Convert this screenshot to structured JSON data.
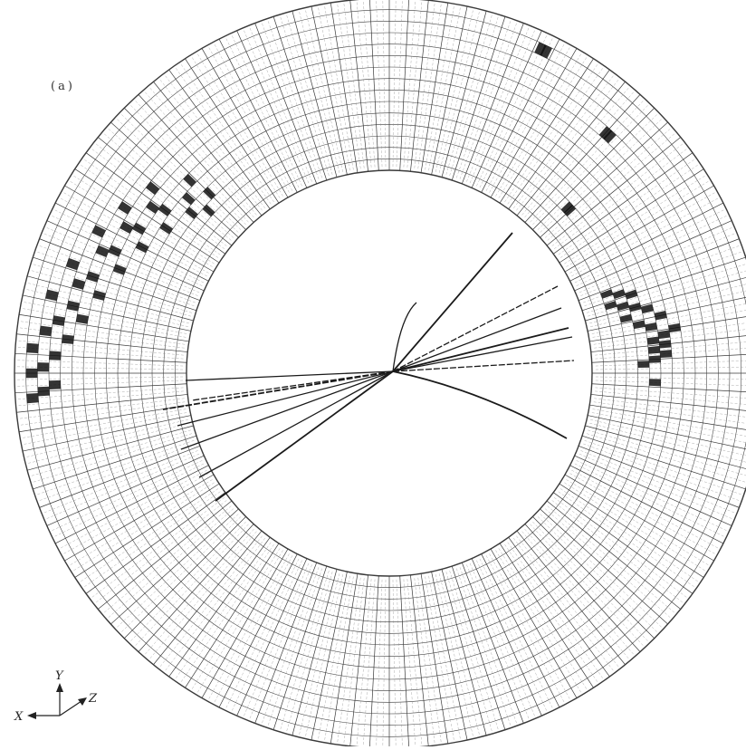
{
  "figure": {
    "panel_label": "(a)",
    "axes": {
      "x_label": "X",
      "y_label": "Y",
      "z_label": "Z"
    },
    "colors": {
      "ink": "#1a1a1a",
      "grid": "#3a3a3a",
      "hit": "#111111",
      "paper": "#ffffff"
    }
  }
}
